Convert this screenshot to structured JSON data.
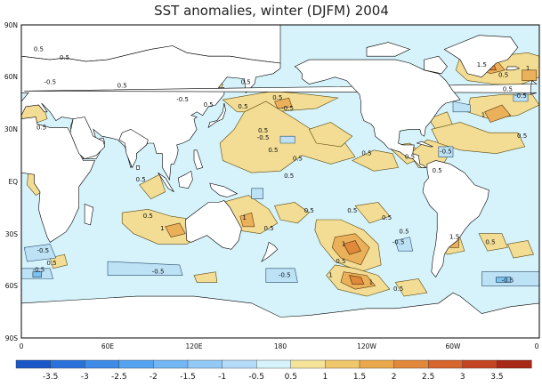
{
  "title": "SST anomalies, winter (DJFM) 2004",
  "colors": {
    "ocean_background": "#d6f3fb",
    "land": "#ffffff",
    "coastline": "#000000",
    "positive_0_5_1": "#f3dc93",
    "positive_1_1_5": "#eab05a",
    "positive_1_5_2": "#e1893a",
    "negative_neg1_neg0_5": "#bde2f6",
    "negative_neg1_5_neg1": "#7cc2ee"
  },
  "latitude_labels": [
    "90N",
    "60N",
    "30N",
    "EQ",
    "30S",
    "60S",
    "90S"
  ],
  "longitude_labels": [
    "0",
    "60E",
    "120E",
    "180",
    "120W",
    "60W",
    "0"
  ],
  "contour_labels": [
    {
      "text": "0.5",
      "lon": 12,
      "lat": 75
    },
    {
      "text": "0.5",
      "lon": 30,
      "lat": 70
    },
    {
      "text": "-0.5",
      "lon": 20,
      "lat": 56
    },
    {
      "text": "0.5",
      "lon": 70,
      "lat": 54
    },
    {
      "text": "0.5",
      "lon": 156,
      "lat": 56
    },
    {
      "text": "0.5",
      "lon": 178,
      "lat": 47
    },
    {
      "text": "-0.5",
      "lon": 112,
      "lat": 46
    },
    {
      "text": "0.5",
      "lon": 130,
      "lat": 43
    },
    {
      "text": "0.5",
      "lon": 154,
      "lat": 42
    },
    {
      "text": "-0.5",
      "lon": 185,
      "lat": 41
    },
    {
      "text": "0.5",
      "lon": 168,
      "lat": 28
    },
    {
      "text": "0.5",
      "lon": 175,
      "lat": 17
    },
    {
      "text": "0.5",
      "lon": 192,
      "lat": 12
    },
    {
      "text": "0.5",
      "lon": 186,
      "lat": 2
    },
    {
      "text": "-0.5",
      "lon": 168,
      "lat": 24
    },
    {
      "text": "0.5",
      "lon": 240,
      "lat": 15
    },
    {
      "text": "0.5",
      "lon": 270,
      "lat": 13
    },
    {
      "text": "0.5",
      "lon": 289,
      "lat": 5
    },
    {
      "text": "-0.5",
      "lon": 295,
      "lat": 16
    },
    {
      "text": "0.5",
      "lon": 335,
      "lat": 60
    },
    {
      "text": "0.5",
      "lon": 338,
      "lat": 52
    },
    {
      "text": "1.5",
      "lon": 320,
      "lat": 66
    },
    {
      "text": "1",
      "lon": 352,
      "lat": 64
    },
    {
      "text": "1",
      "lon": 321,
      "lat": 37
    },
    {
      "text": "-0.5",
      "lon": 347,
      "lat": 48
    },
    {
      "text": "0.5",
      "lon": 348,
      "lat": 25
    },
    {
      "text": "0.5",
      "lon": 14,
      "lat": 30
    },
    {
      "text": "0.5",
      "lon": 83,
      "lat": 0
    },
    {
      "text": "0.5",
      "lon": 88,
      "lat": -21
    },
    {
      "text": "1",
      "lon": 98,
      "lat": -28
    },
    {
      "text": "1",
      "lon": 155,
      "lat": -22
    },
    {
      "text": "0.5",
      "lon": 172,
      "lat": -28
    },
    {
      "text": "0.5",
      "lon": 200,
      "lat": -18
    },
    {
      "text": "0.5",
      "lon": 230,
      "lat": -18
    },
    {
      "text": "1",
      "lon": 224,
      "lat": -37
    },
    {
      "text": "0.5",
      "lon": 254,
      "lat": -22
    },
    {
      "text": "-0.5",
      "lon": 262,
      "lat": -36
    },
    {
      "text": "0.5",
      "lon": 266,
      "lat": -30
    },
    {
      "text": "1.5",
      "lon": 301,
      "lat": -33
    },
    {
      "text": "0.5",
      "lon": 326,
      "lat": -36
    },
    {
      "text": "-0.5",
      "lon": 15,
      "lat": -41
    },
    {
      "text": "-0.5",
      "lon": 12,
      "lat": -52
    },
    {
      "text": "0.5",
      "lon": 21,
      "lat": -48
    },
    {
      "text": "-0.5",
      "lon": 95,
      "lat": -53
    },
    {
      "text": "1",
      "lon": 215,
      "lat": -55
    },
    {
      "text": "1",
      "lon": 243,
      "lat": -59
    },
    {
      "text": "0.5",
      "lon": 222,
      "lat": -47
    },
    {
      "text": "0.5",
      "lon": 262,
      "lat": -63
    },
    {
      "text": "-0.5",
      "lon": 183,
      "lat": -55
    },
    {
      "text": "-0.5",
      "lon": 338,
      "lat": -58
    }
  ],
  "colorbar": {
    "ticks": [
      "-3.5",
      "-3",
      "-2.5",
      "-2",
      "-1.5",
      "-1",
      "-0.5",
      "0.5",
      "1",
      "1.5",
      "2",
      "2.5",
      "3",
      "3.5"
    ],
    "colors": [
      "#1a58c8",
      "#2a72da",
      "#3e8ce8",
      "#55a2f0",
      "#72b6f4",
      "#93c9f6",
      "#b3dbf8",
      "#d6f3fb",
      "#f6e39a",
      "#f0c76a",
      "#e9a94a",
      "#e2883a",
      "#d6652e",
      "#c44424",
      "#a82818"
    ]
  },
  "chart_data": {
    "type": "heatmap",
    "title": "SST anomalies, winter (DJFM) 2004",
    "xlabel": "",
    "ylabel": "",
    "x_ticks": [
      "0",
      "60E",
      "120E",
      "180",
      "120W",
      "60W",
      "0"
    ],
    "y_ticks": [
      "90N",
      "60N",
      "30N",
      "EQ",
      "30S",
      "60S",
      "90S"
    ],
    "xlim": [
      0,
      360
    ],
    "ylim": [
      -90,
      90
    ],
    "color_levels": [
      -3.5,
      -3,
      -2.5,
      -2,
      -1.5,
      -1,
      -0.5,
      0.5,
      1,
      1.5,
      2,
      2.5,
      3,
      3.5
    ],
    "legend": "bottom",
    "grid": false
  }
}
